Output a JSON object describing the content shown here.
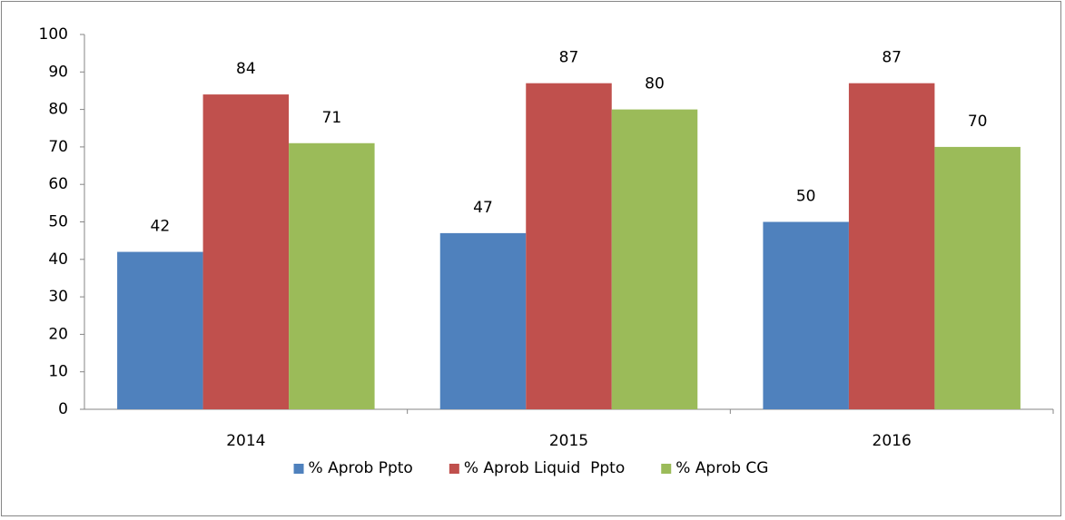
{
  "chart_data": {
    "type": "bar",
    "categories": [
      "2014",
      "2015",
      "2016"
    ],
    "series": [
      {
        "name": "% Aprob Ppto",
        "color": "#4f81bd",
        "values": [
          42,
          47,
          50
        ]
      },
      {
        "name": "% Aprob Liquid  Ppto",
        "color": "#c0504d",
        "values": [
          84,
          87,
          87
        ]
      },
      {
        "name": "% Aprob CG",
        "color": "#9bbb59",
        "values": [
          71,
          80,
          70
        ]
      }
    ],
    "ylim": [
      0,
      100
    ],
    "yticks": [
      0,
      10,
      20,
      30,
      40,
      50,
      60,
      70,
      80,
      90,
      100
    ],
    "grid": false,
    "legend": "bottom"
  }
}
